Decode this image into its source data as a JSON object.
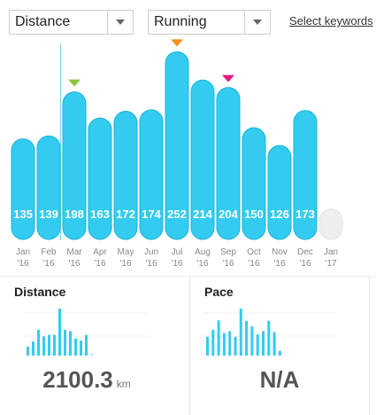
{
  "filters": {
    "metric": "Distance",
    "activity": "Running",
    "keywords_link": "Select keywords"
  },
  "colors": {
    "bar": "#33ccf0",
    "bar_stroke": "#1bb3d8",
    "bar_empty": "#eeeeee",
    "marker_green": "#8cc63f",
    "marker_pink": "#e5197e",
    "marker_orange": "#f7901e"
  },
  "chart_data": {
    "type": "bar",
    "categories": [
      "Jan '16",
      "Feb '16",
      "Mar '16",
      "Apr '16",
      "May '16",
      "Jun '16",
      "Jul '16",
      "Aug '16",
      "Sep '16",
      "Oct '16",
      "Nov '16",
      "Dec '16",
      "Jan '17"
    ],
    "month_labels": [
      "Jan",
      "Feb",
      "Mar",
      "Apr",
      "May",
      "Jun",
      "Jul",
      "Aug",
      "Sep",
      "Oct",
      "Nov",
      "Dec",
      "Jan"
    ],
    "year_labels": [
      "'16",
      "'16",
      "'16",
      "'16",
      "'16",
      "'16",
      "'16",
      "'16",
      "'16",
      "'16",
      "'16",
      "'16",
      "'17"
    ],
    "values": [
      135,
      139,
      198,
      163,
      172,
      174,
      252,
      214,
      204,
      150,
      126,
      173,
      null
    ],
    "value_labels": [
      "135",
      "139",
      "198",
      "163",
      "172",
      "174",
      "252",
      "214",
      "204",
      "150",
      "126",
      "173",
      ""
    ],
    "markers": [
      {
        "index": 2,
        "color": "green"
      },
      {
        "index": 6,
        "color": "orange"
      },
      {
        "index": 8,
        "color": "pink"
      }
    ]
  },
  "stats": {
    "distance": {
      "title": "Distance",
      "value": "2100.3",
      "unit": "km",
      "spark_values": [
        0.19,
        0.3,
        0.55,
        0.41,
        0.44,
        0.44,
        1.0,
        0.55,
        0.52,
        0.36,
        0.32,
        0.44,
        0.04
      ]
    },
    "pace": {
      "title": "Pace",
      "value": "N/A",
      "unit": "",
      "spark_values": [
        0.4,
        0.55,
        0.75,
        0.48,
        0.52,
        0.4,
        1.0,
        0.74,
        0.62,
        0.45,
        0.52,
        0.74,
        0.5,
        0.1
      ]
    }
  }
}
